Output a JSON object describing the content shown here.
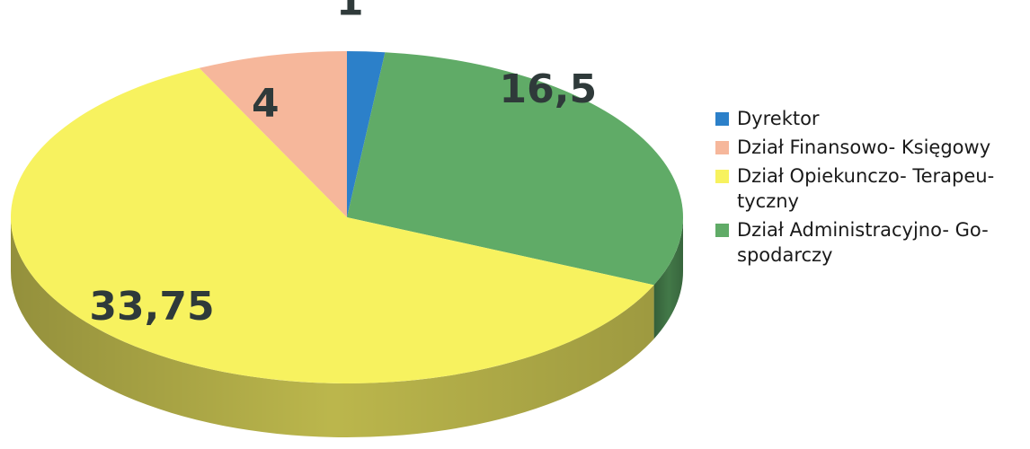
{
  "chart_data": {
    "type": "pie",
    "title": "",
    "categories": [
      "Dyrektor",
      "Dział Finansowo- Księgowy",
      "Dział Opiekunczo- Terapeu- tyczny",
      "Dział Administracyjno- Go- spodarczy"
    ],
    "values": [
      1,
      16.5,
      33.75,
      4
    ],
    "value_labels": [
      "1",
      "16,5",
      "33,75",
      "4"
    ],
    "legend_order": [
      0,
      3,
      2,
      1
    ],
    "colors": [
      "#2c80c9",
      "#60ab67",
      "#f7f25f",
      "#f6b79b"
    ],
    "side_colors": [
      "#1d5c93",
      "#467f4c",
      "#c5c050",
      "#c08c76"
    ],
    "legend_placement": "right",
    "style": "3d-tilted"
  },
  "legend": {
    "items": [
      {
        "label": "Dyrektor",
        "color": "#2c80c9"
      },
      {
        "label": "Dział Finansowo- Księgowy",
        "color": "#f6b79b"
      },
      {
        "label": "Dział Opiekunczo- Terapeu- tyczny",
        "color": "#f7f25f"
      },
      {
        "label": "Dział Administracyjno- Go- spodarczy",
        "color": "#60ab67"
      }
    ]
  }
}
